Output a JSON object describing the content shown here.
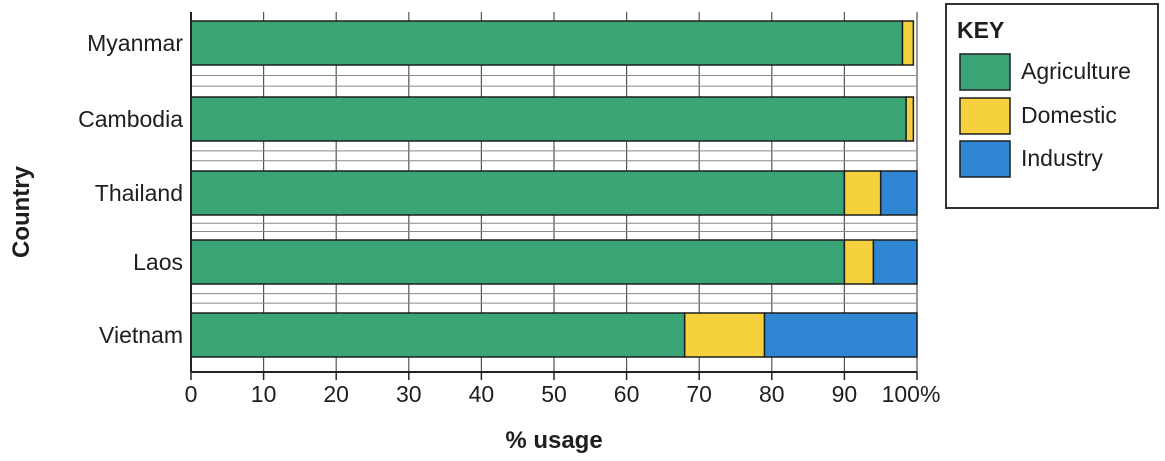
{
  "chart_data": {
    "type": "bar",
    "orientation": "horizontal",
    "stacked": true,
    "categories": [
      "Myanmar",
      "Cambodia",
      "Thailand",
      "Laos",
      "Vietnam"
    ],
    "series": [
      {
        "name": "Agriculture",
        "values": [
          98,
          98.5,
          90,
          90,
          68
        ],
        "color": "#3aa475"
      },
      {
        "name": "Domestic",
        "values": [
          1.5,
          1,
          5,
          4,
          11
        ],
        "color": "#f5d23d"
      },
      {
        "name": "Industry",
        "values": [
          0,
          0,
          5,
          6,
          21
        ],
        "color": "#2f86d2"
      }
    ],
    "xlabel": "% usage",
    "ylabel": "Country",
    "xlim": [
      0,
      100
    ],
    "x_ticks": [
      0,
      10,
      20,
      30,
      40,
      50,
      60,
      70,
      80,
      90,
      100
    ],
    "x_tick_labels": [
      "0",
      "10",
      "20",
      "30",
      "40",
      "50",
      "60",
      "70",
      "80",
      "90",
      "100%"
    ],
    "grid": true,
    "legend": {
      "title": "KEY",
      "placement": "right-top",
      "entries": [
        "Agriculture",
        "Domestic",
        "Industry"
      ]
    }
  }
}
